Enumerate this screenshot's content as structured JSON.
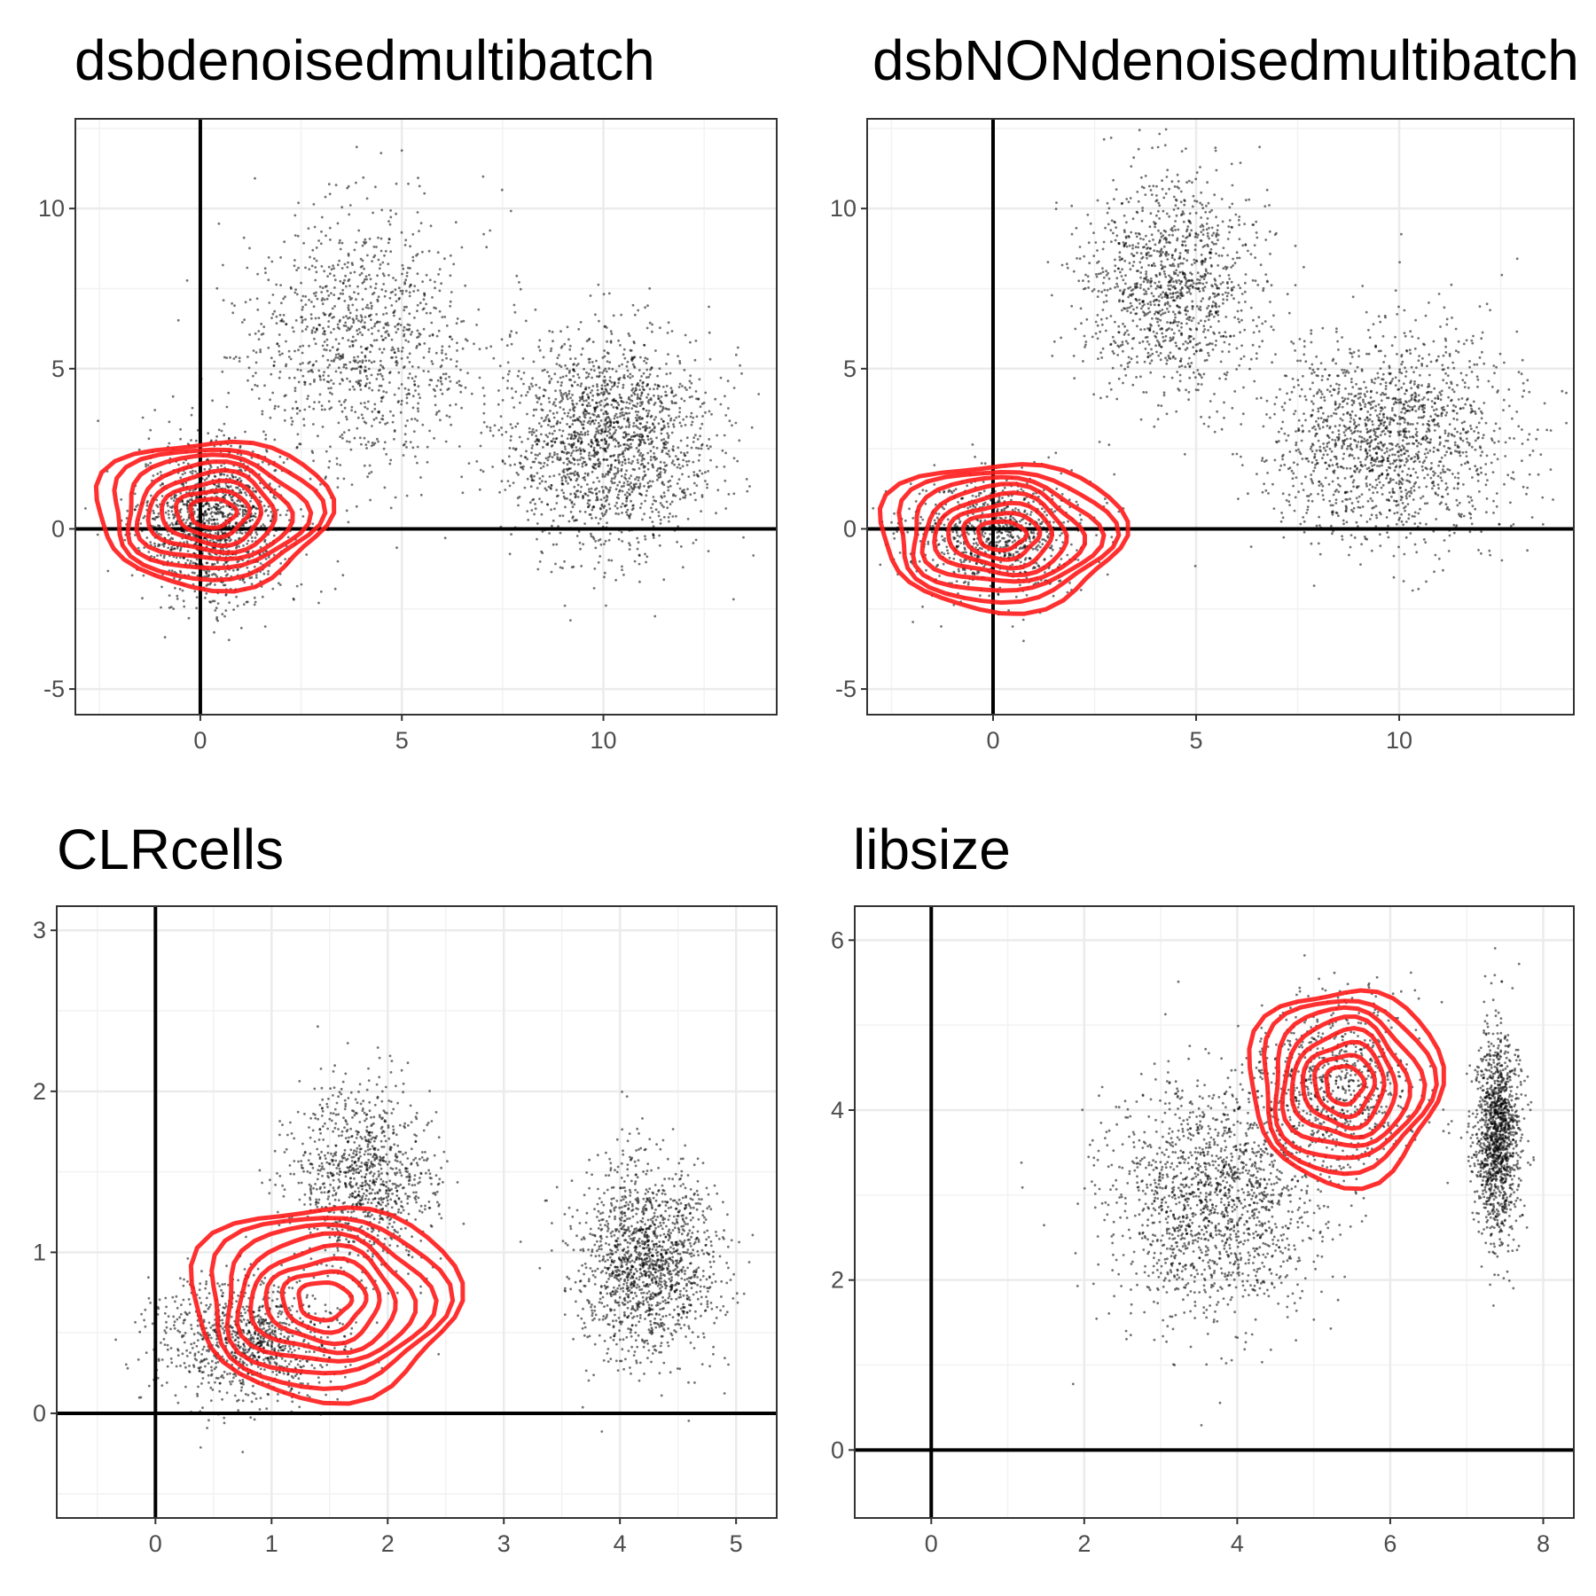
{
  "figure": {
    "background": "#ffffff",
    "point_color": "#000000",
    "contour_color": "#ff1a1a"
  },
  "chart_data": [
    {
      "type": "scatter",
      "title": "dsbdenoisedmultibatch",
      "xlabel": "",
      "ylabel": "",
      "xlim": [
        -3.1,
        14.3
      ],
      "ylim": [
        -5.8,
        12.8
      ],
      "xticks": [
        0,
        5,
        10
      ],
      "yticks": [
        -5,
        0,
        5,
        10
      ],
      "xtick_labels": [
        "0",
        "5",
        "10"
      ],
      "ytick_labels": [
        "-5",
        "0",
        "5",
        "10"
      ],
      "grid": true,
      "reference_lines": {
        "x": 0,
        "y": 0
      },
      "clusters": [
        {
          "cx": 0.3,
          "cy": 0.2,
          "sx": 0.9,
          "sy": 1.2,
          "n": 1400
        },
        {
          "cx": 4.0,
          "cy": 5.8,
          "sx": 1.5,
          "sy": 2.1,
          "n": 1100
        },
        {
          "cx": 10.1,
          "cy": 2.8,
          "sx": 1.3,
          "sy": 1.6,
          "n": 1800
        }
      ],
      "contour_center": [
        0.3,
        0.5
      ],
      "contour_radius": [
        2.9,
        2.3
      ]
    },
    {
      "type": "scatter",
      "title": "dsbNONdenoisedmultibatch",
      "xlabel": "",
      "ylabel": "",
      "xlim": [
        -3.1,
        14.3
      ],
      "ylim": [
        -5.8,
        12.8
      ],
      "xticks": [
        0,
        5,
        10
      ],
      "yticks": [
        -5,
        0,
        5,
        10
      ],
      "xtick_labels": [
        "0",
        "5",
        "10"
      ],
      "ytick_labels": [
        "-5",
        "0",
        "5",
        "10"
      ],
      "grid": true,
      "reference_lines": {
        "x": 0,
        "y": 0
      },
      "clusters": [
        {
          "cx": 0.0,
          "cy": -0.2,
          "sx": 1.1,
          "sy": 0.9,
          "n": 900
        },
        {
          "cx": 4.4,
          "cy": 7.6,
          "sx": 1.1,
          "sy": 1.7,
          "n": 1200
        },
        {
          "cx": 9.8,
          "cy": 2.8,
          "sx": 1.5,
          "sy": 1.6,
          "n": 1600
        }
      ],
      "contour_center": [
        0.2,
        -0.2
      ],
      "contour_radius": [
        3.0,
        2.3
      ]
    },
    {
      "type": "scatter",
      "title": "CLRcells",
      "xlabel": "",
      "ylabel": "",
      "xlim": [
        -0.85,
        5.35
      ],
      "ylim": [
        -0.65,
        3.15
      ],
      "xticks": [
        0,
        1,
        2,
        3,
        4,
        5
      ],
      "yticks": [
        0,
        1,
        2,
        3
      ],
      "xtick_labels": [
        "0",
        "1",
        "2",
        "3",
        "4",
        "5"
      ],
      "ytick_labels": [
        "0",
        "1",
        "2",
        "3"
      ],
      "grid": true,
      "reference_lines": {
        "x": 0,
        "y": 0
      },
      "clusters": [
        {
          "cx": 0.8,
          "cy": 0.45,
          "sx": 0.4,
          "sy": 0.2,
          "n": 1000
        },
        {
          "cx": 1.8,
          "cy": 1.45,
          "sx": 0.3,
          "sy": 0.3,
          "n": 1000
        },
        {
          "cx": 4.25,
          "cy": 0.95,
          "sx": 0.3,
          "sy": 0.3,
          "n": 1500
        }
      ],
      "contour_center": [
        1.45,
        0.7
      ],
      "contour_radius": [
        1.15,
        0.6
      ]
    },
    {
      "type": "scatter",
      "title": "libsize",
      "xlabel": "",
      "ylabel": "",
      "xlim": [
        -1.0,
        8.4
      ],
      "ylim": [
        -0.8,
        6.4
      ],
      "xticks": [
        0,
        2,
        4,
        6,
        8
      ],
      "yticks": [
        0,
        2,
        4,
        6
      ],
      "xtick_labels": [
        "0",
        "2",
        "4",
        "6",
        "8"
      ],
      "ytick_labels": [
        "0",
        "2",
        "4",
        "6"
      ],
      "grid": true,
      "reference_lines": {
        "x": 0,
        "y": 0
      },
      "clusters": [
        {
          "cx": 3.7,
          "cy": 2.9,
          "sx": 0.7,
          "sy": 0.7,
          "n": 1600
        },
        {
          "cx": 5.3,
          "cy": 4.3,
          "sx": 0.5,
          "sy": 0.5,
          "n": 800
        },
        {
          "cx": 7.4,
          "cy": 3.7,
          "sx": 0.15,
          "sy": 0.6,
          "n": 1300
        }
      ],
      "contour_center": [
        5.4,
        4.3
      ],
      "contour_radius": [
        1.25,
        1.15
      ]
    }
  ]
}
